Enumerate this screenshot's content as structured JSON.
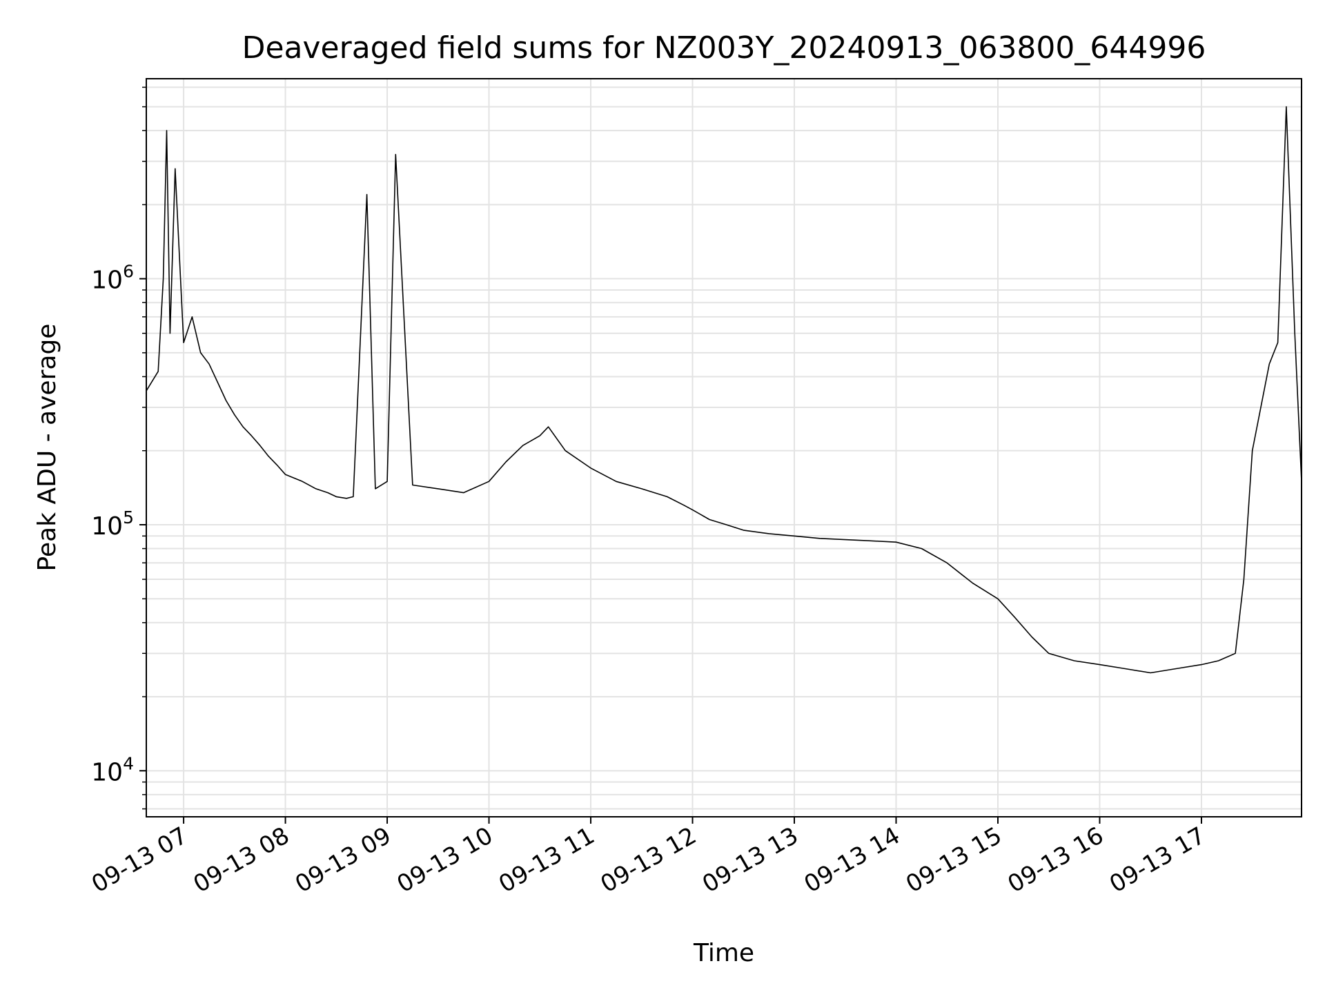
{
  "chart_data": {
    "type": "line",
    "title": "Deaveraged field sums for NZ003Y_20240913_063800_644996",
    "xlabel": "Time",
    "ylabel": "Peak ADU - average",
    "y_scale": "log",
    "ylim": [
      6500,
      6500000
    ],
    "xlim": [
      "2024-09-13 06:38",
      "2024-09-13 17:59"
    ],
    "grid": true,
    "line_color": "#000000",
    "x_ticks": [
      {
        "t": "2024-09-13 07:00",
        "label": "09-13 07"
      },
      {
        "t": "2024-09-13 08:00",
        "label": "09-13 08"
      },
      {
        "t": "2024-09-13 09:00",
        "label": "09-13 09"
      },
      {
        "t": "2024-09-13 10:00",
        "label": "09-13 10"
      },
      {
        "t": "2024-09-13 11:00",
        "label": "09-13 11"
      },
      {
        "t": "2024-09-13 12:00",
        "label": "09-13 12"
      },
      {
        "t": "2024-09-13 13:00",
        "label": "09-13 13"
      },
      {
        "t": "2024-09-13 14:00",
        "label": "09-13 14"
      },
      {
        "t": "2024-09-13 15:00",
        "label": "09-13 15"
      },
      {
        "t": "2024-09-13 16:00",
        "label": "09-13 16"
      },
      {
        "t": "2024-09-13 17:00",
        "label": "09-13 17"
      }
    ],
    "y_ticks": [
      {
        "value": 10000,
        "base": "10",
        "exp": "4"
      },
      {
        "value": 100000,
        "base": "10",
        "exp": "5"
      },
      {
        "value": 1000000,
        "base": "10",
        "exp": "6"
      }
    ],
    "series": [
      {
        "x": [
          "2024-09-13 06:38",
          "2024-09-13 06:45",
          "2024-09-13 06:48",
          "2024-09-13 06:50",
          "2024-09-13 06:52",
          "2024-09-13 06:55",
          "2024-09-13 07:00",
          "2024-09-13 07:05",
          "2024-09-13 07:10",
          "2024-09-13 07:15",
          "2024-09-13 07:20",
          "2024-09-13 07:25",
          "2024-09-13 07:30",
          "2024-09-13 07:35",
          "2024-09-13 07:40",
          "2024-09-13 07:45",
          "2024-09-13 07:50",
          "2024-09-13 07:55",
          "2024-09-13 08:00",
          "2024-09-13 08:10",
          "2024-09-13 08:18",
          "2024-09-13 08:25",
          "2024-09-13 08:30",
          "2024-09-13 08:36",
          "2024-09-13 08:40",
          "2024-09-13 08:48",
          "2024-09-13 08:53",
          "2024-09-13 09:00",
          "2024-09-13 09:05",
          "2024-09-13 09:15",
          "2024-09-13 09:30",
          "2024-09-13 09:45",
          "2024-09-13 10:00",
          "2024-09-13 10:10",
          "2024-09-13 10:20",
          "2024-09-13 10:30",
          "2024-09-13 10:35",
          "2024-09-13 10:45",
          "2024-09-13 11:00",
          "2024-09-13 11:15",
          "2024-09-13 11:30",
          "2024-09-13 11:45",
          "2024-09-13 11:55",
          "2024-09-13 12:00",
          "2024-09-13 12:10",
          "2024-09-13 12:20",
          "2024-09-13 12:30",
          "2024-09-13 12:45",
          "2024-09-13 13:00",
          "2024-09-13 13:15",
          "2024-09-13 13:30",
          "2024-09-13 13:45",
          "2024-09-13 14:00",
          "2024-09-13 14:15",
          "2024-09-13 14:30",
          "2024-09-13 14:45",
          "2024-09-13 15:00",
          "2024-09-13 15:10",
          "2024-09-13 15:20",
          "2024-09-13 15:30",
          "2024-09-13 15:45",
          "2024-09-13 16:00",
          "2024-09-13 16:15",
          "2024-09-13 16:30",
          "2024-09-13 16:45",
          "2024-09-13 17:00",
          "2024-09-13 17:10",
          "2024-09-13 17:20",
          "2024-09-13 17:25",
          "2024-09-13 17:30",
          "2024-09-13 17:40",
          "2024-09-13 17:45",
          "2024-09-13 17:50",
          "2024-09-13 17:55",
          "2024-09-13 17:59"
        ],
        "values": [
          350000,
          420000,
          1000000,
          4000000,
          600000,
          2800000,
          550000,
          700000,
          500000,
          450000,
          380000,
          320000,
          280000,
          250000,
          230000,
          210000,
          190000,
          175000,
          160000,
          150000,
          140000,
          135000,
          130000,
          128000,
          130000,
          2200000,
          140000,
          150000,
          3200000,
          145000,
          140000,
          135000,
          150000,
          180000,
          210000,
          230000,
          250000,
          200000,
          170000,
          150000,
          140000,
          130000,
          120000,
          115000,
          105000,
          100000,
          95000,
          92000,
          90000,
          88000,
          87000,
          86000,
          85000,
          80000,
          70000,
          58000,
          50000,
          42000,
          35000,
          30000,
          28000,
          27000,
          26000,
          25000,
          26000,
          27000,
          28000,
          30000,
          60000,
          200000,
          450000,
          550000,
          5000000,
          600000,
          150000
        ]
      }
    ]
  }
}
